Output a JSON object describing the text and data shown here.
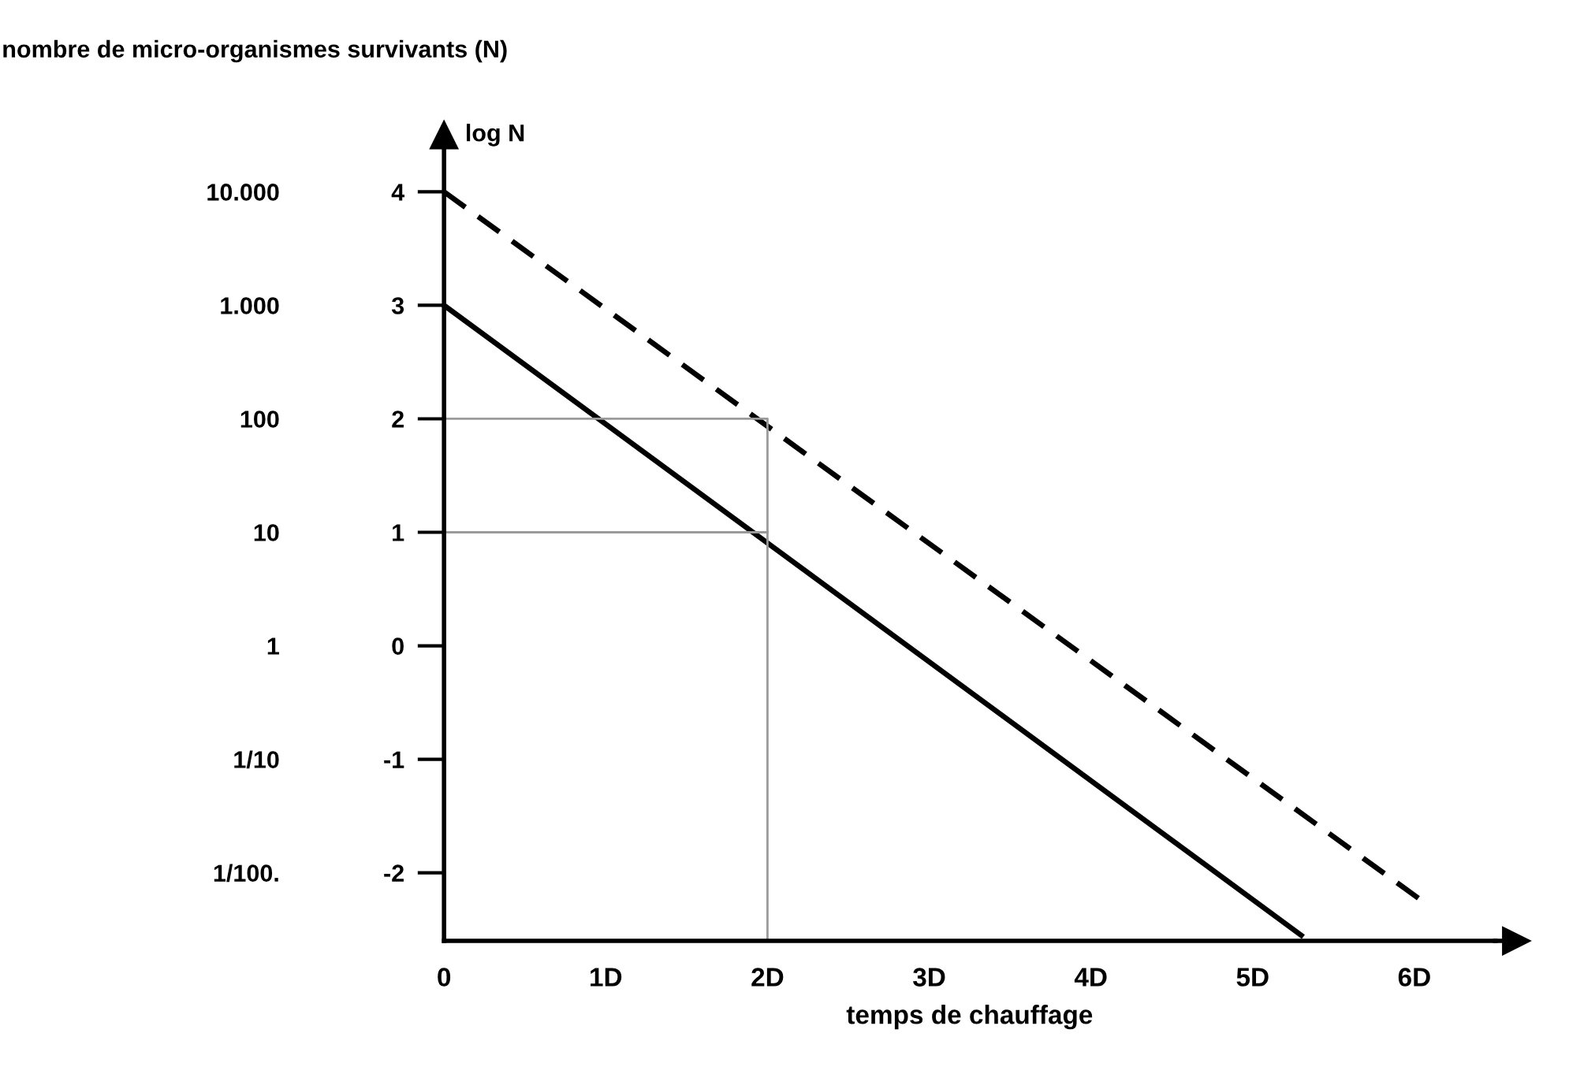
{
  "chart_data": {
    "type": "line",
    "xlabel": "temps de chauffage",
    "ylabel": "log N",
    "y2label": "nombre de micro-organismes survivants (N)",
    "xlim": [
      0,
      6.5
    ],
    "xticks": [
      0,
      {
        "value": 1,
        "label": "1D"
      },
      {
        "value": 2,
        "label": "2D"
      },
      {
        "value": 3,
        "label": "3D"
      },
      {
        "value": 4,
        "label": "4D"
      },
      {
        "value": 5,
        "label": "5D"
      },
      {
        "value": 6,
        "label": "6D"
      }
    ],
    "ylim": [
      -2.6,
      4.5
    ],
    "yticks": [
      -2,
      -1,
      0,
      1,
      2,
      3,
      4
    ],
    "y2lim": [
      0.00251,
      31623
    ],
    "y2ticks": [
      {
        "value": 0.01,
        "label": "1/100."
      },
      {
        "value": 0.1,
        "label": "1/10"
      },
      1,
      10,
      100,
      {
        "value": 1000,
        "label": "1.000"
      },
      {
        "value": 10000,
        "label": "10.000"
      }
    ],
    "log": "y2",
    "grid": false,
    "marker": "none",
    "series": [
      {
        "color": "#000000",
        "line_style": "solid",
        "x": [
          0,
          5.3
        ],
        "values": [
          3,
          -2.55
        ]
      },
      {
        "color": "#000000",
        "line_style": "dashed",
        "x": [
          0,
          6.05
        ],
        "values": [
          4,
          -2.25
        ]
      },
      {
        "color": "#9a9a9a",
        "line_style": "solid",
        "x": [
          0,
          2,
          2
        ],
        "values": [
          2,
          2,
          -2.6
        ]
      },
      {
        "color": "#9a9a9a",
        "line_style": "solid",
        "x": [
          0,
          2
        ],
        "values": [
          1,
          1
        ]
      }
    ]
  }
}
